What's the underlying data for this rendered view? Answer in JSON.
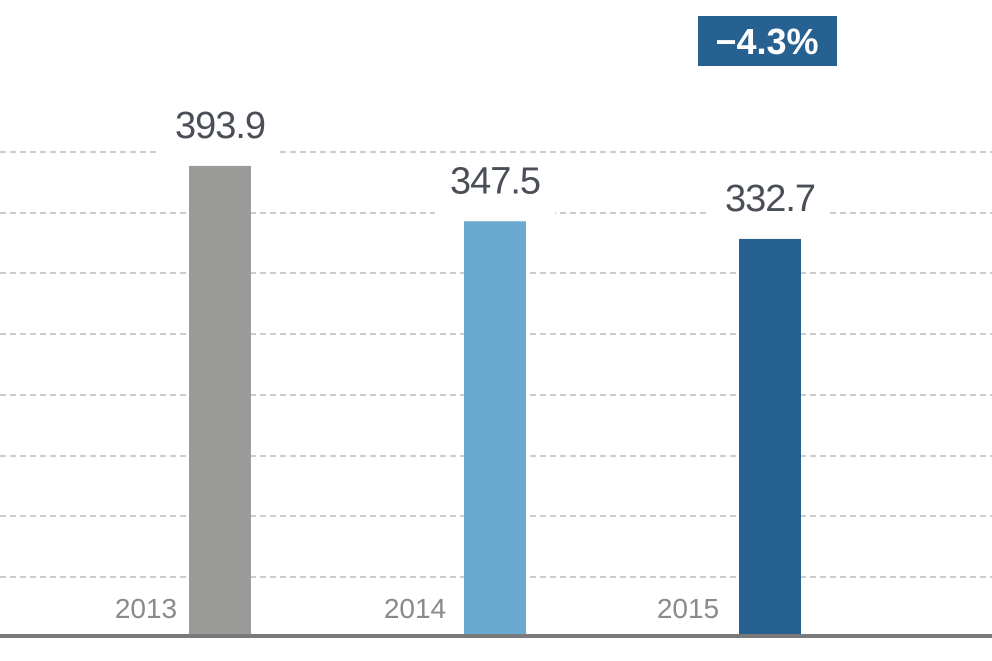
{
  "chart_data": {
    "type": "bar",
    "categories": [
      "2013",
      "2014",
      "2015"
    ],
    "values": [
      393.9,
      347.5,
      332.7
    ],
    "value_labels": [
      "393.9",
      "347.5",
      "332.7"
    ],
    "title": "",
    "xlabel": "",
    "ylabel": "",
    "ylim": [
      0,
      405
    ],
    "grid": true,
    "grid_style": "dashed horizontal",
    "legend": "none",
    "annotation": {
      "text": "−4.3%"
    },
    "colors": [
      "#9b9b99",
      "#6aaad0",
      "#266192"
    ],
    "annotation_color": "#266192",
    "baseline_color": "#7a7a7a",
    "grid_color": "#9b9b9b"
  }
}
